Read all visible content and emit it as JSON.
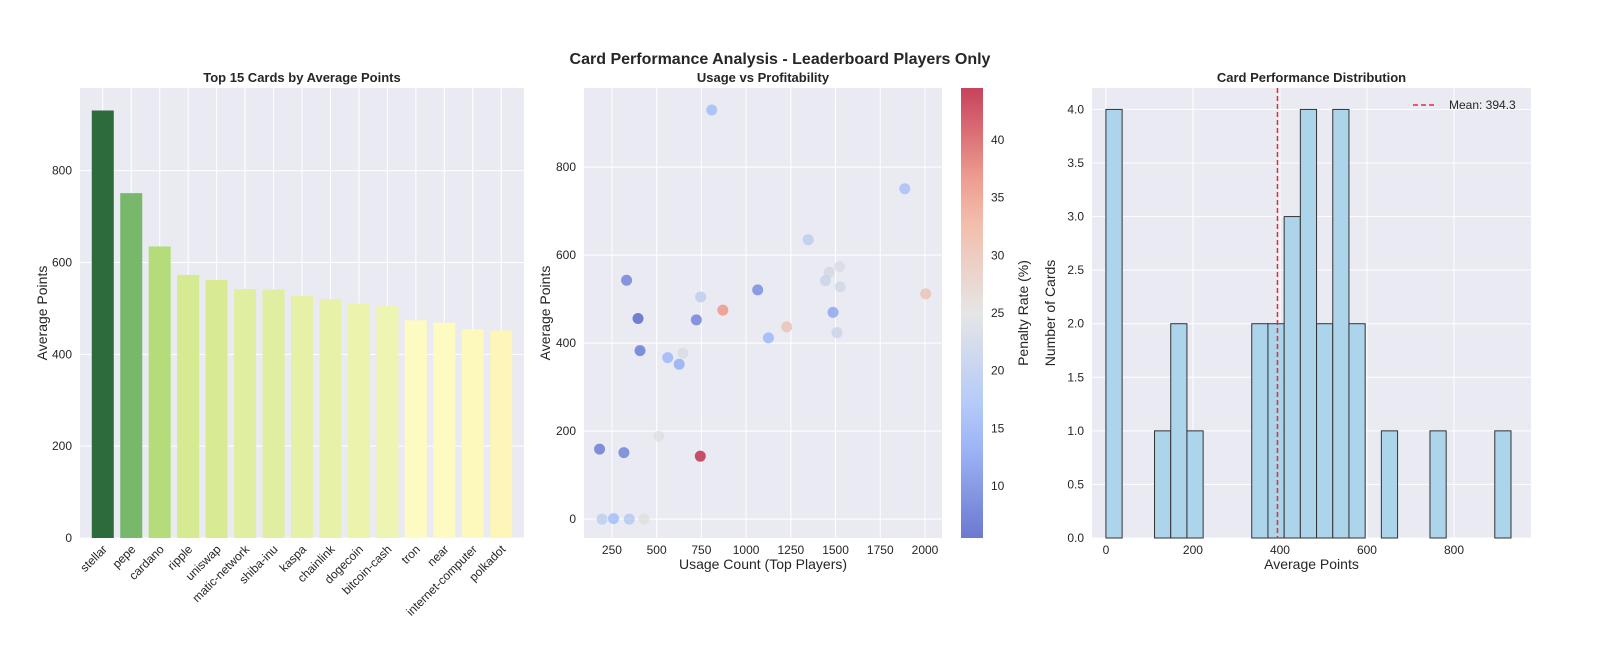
{
  "suptitle": "Card Performance Analysis - Leaderboard Players Only",
  "chart_data": [
    {
      "type": "bar",
      "title": "Top 15 Cards by Average Points",
      "xlabel": "",
      "ylabel": "Average Points",
      "categories": [
        "stellar",
        "pepe",
        "cardano",
        "ripple",
        "uniswap",
        "matic-network",
        "shiba-inu",
        "kaspa",
        "chainlink",
        "dogecoin",
        "bitcoin-cash",
        "tron",
        "near",
        "internet-computer",
        "polkadot"
      ],
      "values": [
        931,
        751,
        635,
        573,
        562,
        542,
        541,
        527,
        520,
        510,
        505,
        474,
        469,
        455,
        452
      ],
      "colors": [
        "#2d6a3c",
        "#78b86a",
        "#b4dc7b",
        "#d5ea91",
        "#d8eb93",
        "#dfeea0",
        "#e0eea1",
        "#e6f0a6",
        "#e7f1a7",
        "#ecf3ad",
        "#eef4b1",
        "#fdfbc1",
        "#fdfbc1",
        "#fdf8bc",
        "#fdf6b8"
      ],
      "ylim": [
        0,
        980
      ],
      "yticks": [
        0,
        200,
        400,
        600,
        800
      ],
      "grid": true
    },
    {
      "type": "scatter",
      "title": "Usage vs Profitability",
      "xlabel": "Usage Count (Top Players)",
      "ylabel": "Average Points",
      "colorbar_label": "Penalty Rate (%)",
      "colormap": "coolwarm",
      "colorbar_range": [
        5.5,
        44.5
      ],
      "colorbar_ticks": [
        10,
        15,
        20,
        25,
        30,
        35,
        40
      ],
      "xlim": [
        94,
        2095
      ],
      "ylim": [
        -43,
        980
      ],
      "xticks": [
        250,
        500,
        750,
        1000,
        1250,
        1500,
        1750,
        2000
      ],
      "yticks": [
        0,
        200,
        400,
        600,
        800
      ],
      "points": [
        {
          "x": 808,
          "y": 930,
          "penalty": 16
        },
        {
          "x": 1887,
          "y": 751,
          "penalty": 17
        },
        {
          "x": 1347,
          "y": 635,
          "penalty": 20
        },
        {
          "x": 1522,
          "y": 574,
          "penalty": 24
        },
        {
          "x": 1464,
          "y": 561,
          "penalty": 23
        },
        {
          "x": 1444,
          "y": 542,
          "penalty": 22
        },
        {
          "x": 1526,
          "y": 528,
          "penalty": 23
        },
        {
          "x": 2004,
          "y": 512,
          "penalty": 30
        },
        {
          "x": 332,
          "y": 543,
          "penalty": 9
        },
        {
          "x": 1065,
          "y": 521,
          "penalty": 10
        },
        {
          "x": 746,
          "y": 505,
          "penalty": 20
        },
        {
          "x": 870,
          "y": 475,
          "penalty": 36
        },
        {
          "x": 396,
          "y": 456,
          "penalty": 6
        },
        {
          "x": 722,
          "y": 453,
          "penalty": 9
        },
        {
          "x": 1486,
          "y": 470,
          "penalty": 13
        },
        {
          "x": 1227,
          "y": 437,
          "penalty": 30
        },
        {
          "x": 1508,
          "y": 424,
          "penalty": 22
        },
        {
          "x": 1125,
          "y": 412,
          "penalty": 15
        },
        {
          "x": 407,
          "y": 383,
          "penalty": 8
        },
        {
          "x": 647,
          "y": 377,
          "penalty": 24
        },
        {
          "x": 562,
          "y": 367,
          "penalty": 15
        },
        {
          "x": 626,
          "y": 352,
          "penalty": 14
        },
        {
          "x": 512,
          "y": 188,
          "penalty": 25
        },
        {
          "x": 181,
          "y": 159,
          "penalty": 8
        },
        {
          "x": 317,
          "y": 151,
          "penalty": 9
        },
        {
          "x": 744,
          "y": 143,
          "penalty": 44
        },
        {
          "x": 195,
          "y": 0,
          "penalty": 20
        },
        {
          "x": 259,
          "y": 1,
          "penalty": 16
        },
        {
          "x": 347,
          "y": 0,
          "penalty": 19
        },
        {
          "x": 429,
          "y": 0,
          "penalty": 25
        }
      ],
      "grid": true
    },
    {
      "type": "histogram",
      "title": "Card Performance Distribution",
      "xlabel": "Average Points",
      "ylabel": "Number of Cards",
      "bin_range": [
        0,
        931
      ],
      "counts": [
        4,
        0,
        0,
        1,
        2,
        1,
        0,
        0,
        0,
        2,
        2,
        3,
        4,
        2,
        4,
        2,
        0,
        1,
        0,
        0,
        1,
        0,
        0,
        0,
        1
      ],
      "bar_color": "#a9d3ea",
      "xlim": [
        -32,
        977
      ],
      "ylim": [
        0,
        4.2
      ],
      "xticks": [
        0,
        200,
        400,
        600,
        800
      ],
      "yticks": [
        "0.0",
        "0.5",
        "1.0",
        "1.5",
        "2.0",
        "2.5",
        "3.0",
        "3.5",
        "4.0"
      ],
      "mean": 394.3,
      "mean_color": "#e03030",
      "legend": {
        "label": "Mean: 394.3",
        "placement": "top-right"
      },
      "grid": true
    }
  ]
}
